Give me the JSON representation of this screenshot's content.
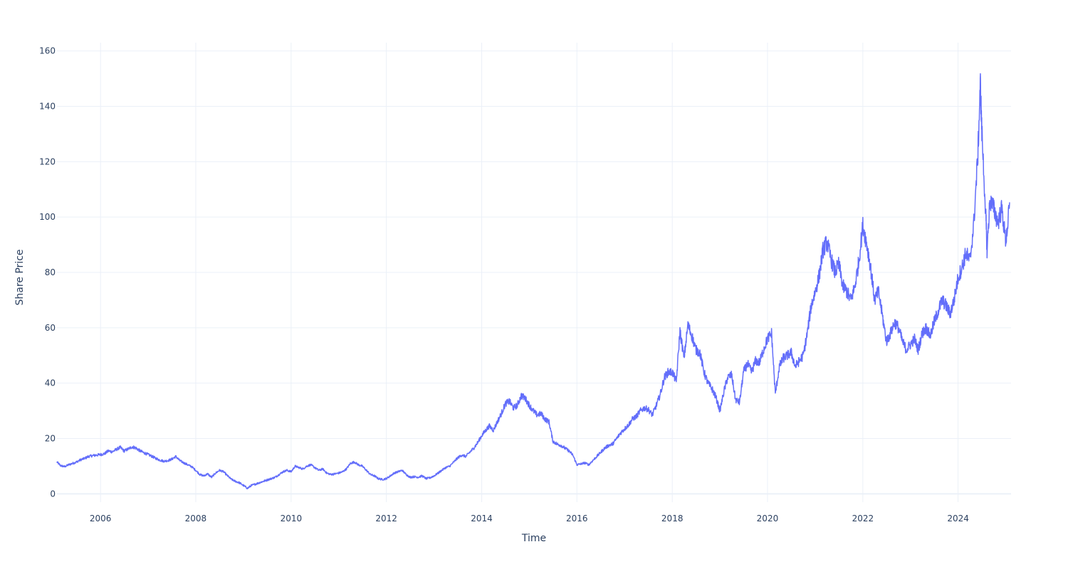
{
  "chart_data": {
    "type": "line",
    "xlabel": "Time",
    "ylabel": "Share Price",
    "x_axis_type": "date",
    "xlim": [
      "2005-02-01",
      "2025-02-10"
    ],
    "ylim": [
      -3,
      163
    ],
    "x_ticks": [
      "2006",
      "2008",
      "2010",
      "2012",
      "2014",
      "2016",
      "2018",
      "2020",
      "2022",
      "2024"
    ],
    "y_ticks": [
      0,
      20,
      40,
      60,
      80,
      100,
      120,
      140,
      160
    ],
    "grid": true,
    "legend": "none",
    "line_color": "#636efa",
    "grid_color": "#ebf0f8",
    "text_color": "#2a3f5f",
    "series": [
      {
        "x": [
          "2005-02-01",
          "2005-03-01",
          "2005-04-01",
          "2005-05-01",
          "2005-06-01",
          "2005-07-01",
          "2005-08-01",
          "2005-09-01",
          "2005-10-01",
          "2005-11-01",
          "2005-12-01",
          "2006-01-01",
          "2006-02-01",
          "2006-03-01",
          "2006-04-01",
          "2006-05-01",
          "2006-06-01",
          "2006-07-01",
          "2006-08-01",
          "2006-09-01",
          "2006-10-01",
          "2006-11-01",
          "2006-12-01",
          "2007-01-01",
          "2007-02-01",
          "2007-03-01",
          "2007-04-01",
          "2007-05-01",
          "2007-06-01",
          "2007-07-01",
          "2007-08-01",
          "2007-09-01",
          "2007-10-01",
          "2007-11-01",
          "2007-12-01",
          "2008-01-01",
          "2008-02-01",
          "2008-03-01",
          "2008-04-01",
          "2008-05-01",
          "2008-06-01",
          "2008-07-01",
          "2008-08-01",
          "2008-09-01",
          "2008-10-01",
          "2008-11-01",
          "2008-12-01",
          "2009-01-01",
          "2009-02-01",
          "2009-03-01",
          "2009-04-01",
          "2009-05-01",
          "2009-06-01",
          "2009-07-01",
          "2009-08-01",
          "2009-09-01",
          "2009-10-01",
          "2009-11-01",
          "2009-12-01",
          "2010-01-01",
          "2010-02-01",
          "2010-03-01",
          "2010-04-01",
          "2010-05-01",
          "2010-06-01",
          "2010-07-01",
          "2010-08-01",
          "2010-09-01",
          "2010-10-01",
          "2010-11-01",
          "2010-12-01",
          "2011-01-01",
          "2011-02-01",
          "2011-03-01",
          "2011-04-01",
          "2011-05-01",
          "2011-06-01",
          "2011-07-01",
          "2011-08-01",
          "2011-09-01",
          "2011-10-01",
          "2011-11-01",
          "2011-12-01",
          "2012-01-01",
          "2012-02-01",
          "2012-03-01",
          "2012-04-01",
          "2012-05-01",
          "2012-06-01",
          "2012-07-01",
          "2012-08-01",
          "2012-09-01",
          "2012-10-01",
          "2012-11-01",
          "2012-12-01",
          "2013-01-01",
          "2013-02-01",
          "2013-03-01",
          "2013-04-01",
          "2013-05-01",
          "2013-06-01",
          "2013-07-01",
          "2013-08-01",
          "2013-09-01",
          "2013-10-01",
          "2013-11-01",
          "2013-12-01",
          "2014-01-01",
          "2014-02-01",
          "2014-03-01",
          "2014-04-01",
          "2014-05-01",
          "2014-06-01",
          "2014-07-01",
          "2014-08-01",
          "2014-09-01",
          "2014-10-01",
          "2014-11-01",
          "2014-12-01",
          "2015-01-01",
          "2015-02-01",
          "2015-03-01",
          "2015-04-01",
          "2015-05-01",
          "2015-06-01",
          "2015-07-01",
          "2015-08-01",
          "2015-09-01",
          "2015-10-01",
          "2015-11-01",
          "2015-12-01",
          "2016-01-01",
          "2016-02-01",
          "2016-03-01",
          "2016-04-01",
          "2016-05-01",
          "2016-06-01",
          "2016-07-01",
          "2016-08-01",
          "2016-09-01",
          "2016-10-01",
          "2016-11-01",
          "2016-12-01",
          "2017-01-01",
          "2017-02-01",
          "2017-03-01",
          "2017-04-01",
          "2017-05-01",
          "2017-06-01",
          "2017-07-01",
          "2017-08-01",
          "2017-09-01",
          "2017-10-01",
          "2017-11-01",
          "2017-12-01",
          "2018-01-01",
          "2018-02-01",
          "2018-03-01",
          "2018-04-01",
          "2018-05-01",
          "2018-06-01",
          "2018-07-01",
          "2018-08-01",
          "2018-09-01",
          "2018-10-01",
          "2018-11-01",
          "2018-12-01",
          "2019-01-01",
          "2019-02-01",
          "2019-03-01",
          "2019-04-01",
          "2019-05-01",
          "2019-06-01",
          "2019-07-01",
          "2019-08-01",
          "2019-09-01",
          "2019-10-01",
          "2019-11-01",
          "2019-12-01",
          "2020-01-01",
          "2020-02-01",
          "2020-03-01",
          "2020-04-01",
          "2020-05-01",
          "2020-06-01",
          "2020-07-01",
          "2020-08-01",
          "2020-09-01",
          "2020-10-01",
          "2020-11-01",
          "2020-12-01",
          "2021-01-01",
          "2021-02-01",
          "2021-03-01",
          "2021-04-01",
          "2021-05-01",
          "2021-06-01",
          "2021-07-01",
          "2021-08-01",
          "2021-09-01",
          "2021-10-01",
          "2021-11-01",
          "2021-12-01",
          "2022-01-01",
          "2022-02-01",
          "2022-03-01",
          "2022-04-01",
          "2022-05-01",
          "2022-06-01",
          "2022-07-01",
          "2022-08-01",
          "2022-09-01",
          "2022-10-01",
          "2022-11-01",
          "2022-12-01",
          "2023-01-01",
          "2023-02-01",
          "2023-03-01",
          "2023-04-01",
          "2023-05-01",
          "2023-06-01",
          "2023-07-01",
          "2023-08-01",
          "2023-09-01",
          "2023-10-01",
          "2023-11-01",
          "2023-12-01",
          "2024-01-01",
          "2024-02-01",
          "2024-03-01",
          "2024-04-01",
          "2024-05-01",
          "2024-06-01",
          "2024-06-20",
          "2024-07-01",
          "2024-08-01",
          "2024-08-10",
          "2024-09-01",
          "2024-10-01",
          "2024-11-01",
          "2024-12-01",
          "2025-01-01",
          "2025-02-01"
        ],
        "y": [
          11.5,
          10.2,
          9.8,
          10.5,
          11.0,
          11.5,
          12.3,
          12.8,
          13.5,
          13.8,
          14.0,
          14.2,
          14.5,
          15.5,
          15.2,
          16.0,
          16.8,
          15.5,
          16.2,
          17.0,
          16.5,
          15.5,
          14.8,
          14.2,
          13.5,
          12.8,
          12.2,
          11.8,
          12.0,
          12.5,
          13.5,
          12.0,
          11.2,
          10.5,
          9.8,
          8.5,
          7.0,
          6.5,
          7.2,
          6.0,
          7.5,
          8.5,
          8.0,
          6.5,
          5.2,
          4.5,
          4.0,
          3.0,
          2.0,
          3.0,
          3.5,
          4.0,
          4.5,
          5.0,
          5.5,
          6.0,
          7.0,
          8.0,
          8.5,
          8.0,
          10.0,
          9.5,
          9.0,
          10.0,
          10.5,
          9.5,
          8.5,
          9.0,
          7.5,
          7.0,
          7.2,
          7.5,
          8.0,
          9.0,
          11.0,
          11.5,
          10.5,
          10.0,
          8.5,
          7.0,
          6.5,
          5.5,
          5.2,
          5.5,
          6.5,
          7.5,
          8.0,
          8.5,
          7.0,
          6.0,
          6.2,
          6.0,
          6.5,
          5.5,
          5.8,
          6.5,
          7.5,
          8.5,
          9.5,
          10.0,
          11.5,
          13.0,
          14.0,
          13.5,
          15.0,
          16.5,
          18.5,
          21.0,
          23.0,
          24.5,
          23.0,
          26.0,
          29.0,
          32.5,
          33.5,
          31.0,
          32.0,
          35.5,
          34.5,
          32.0,
          30.0,
          28.5,
          29.0,
          27.0,
          26.0,
          19.0,
          18.0,
          17.5,
          16.5,
          15.5,
          14.0,
          10.5,
          10.8,
          11.2,
          10.5,
          12.0,
          13.5,
          15.0,
          16.5,
          17.5,
          18.0,
          20.0,
          22.0,
          23.5,
          25.0,
          27.0,
          28.0,
          30.0,
          31.0,
          30.5,
          28.5,
          32.0,
          36.0,
          42.0,
          44.0,
          44.0,
          40.5,
          59.0,
          49.0,
          61.0,
          57.0,
          52.0,
          51.0,
          44.0,
          40.0,
          38.0,
          35.0,
          30.0,
          37.0,
          42.0,
          43.0,
          34.0,
          33.0,
          44.0,
          47.0,
          44.0,
          48.0,
          47.5,
          52.0,
          56.0,
          58.0,
          36.0,
          46.0,
          49.0,
          50.0,
          51.0,
          46.0,
          48.0,
          50.0,
          58.0,
          68.0,
          73.0,
          79.0,
          88.0,
          91.0,
          85.0,
          80.0,
          83.0,
          75.0,
          73.0,
          70.0,
          75.0,
          84.0,
          97.0,
          90.0,
          82.0,
          70.0,
          73.0,
          64.0,
          55.0,
          58.0,
          62.0,
          60.0,
          55.0,
          52.0,
          54.0,
          56.0,
          52.0,
          58.0,
          60.0,
          57.0,
          62.0,
          66.0,
          70.0,
          68.0,
          65.0,
          70.0,
          78.0,
          82.0,
          87.0,
          84.0,
          98.0,
          123.0,
          148.0,
          131.0,
          100.0,
          88.0,
          106.0,
          103.0,
          98.0,
          103.0,
          91.0,
          105.0
        ]
      }
    ]
  }
}
